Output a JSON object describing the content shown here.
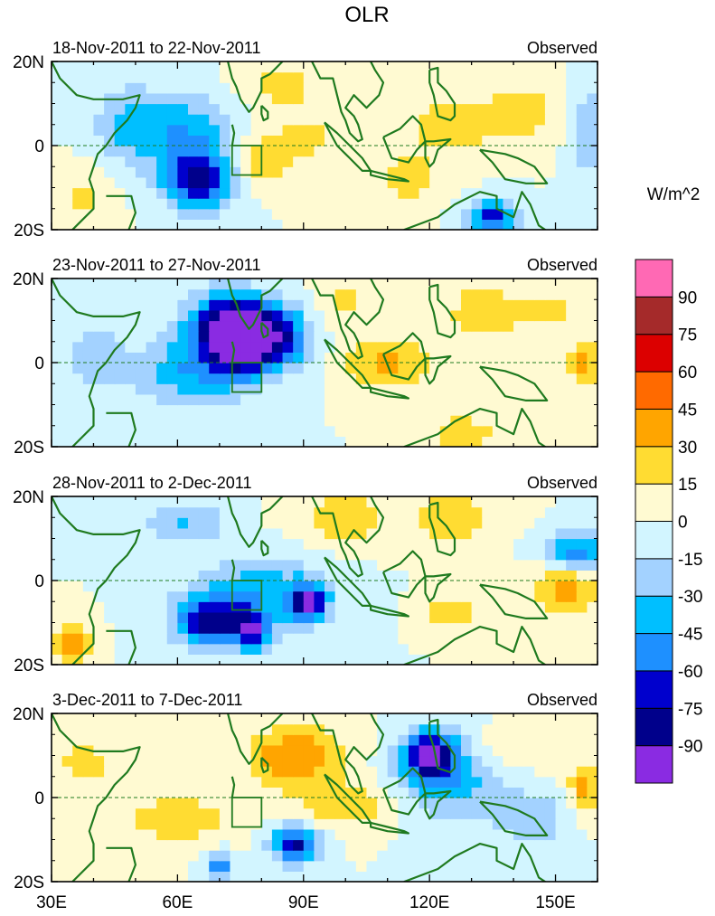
{
  "title": "OLR",
  "units": "W/m^2",
  "colors": {
    "frame": "#000000",
    "coast": "#1f7a1f",
    "box": "#1f7a1f",
    "equator": "#1f7a1f"
  },
  "chart_data": {
    "type": "heatmap",
    "variable": "OLR anomaly",
    "x_axis": {
      "min": 30,
      "max": 160,
      "ticks": [
        30,
        60,
        90,
        120,
        150
      ],
      "tick_labels": [
        "30E",
        "60E",
        "90E",
        "120E",
        "150E"
      ]
    },
    "y_axis": {
      "min": -20,
      "max": 20,
      "ticks": [
        20,
        0,
        -20
      ],
      "tick_labels": [
        "20N",
        "0",
        "20S"
      ]
    },
    "colorbar": {
      "levels": [
        -90,
        -75,
        -60,
        -45,
        -30,
        -15,
        0,
        15,
        30,
        45,
        60,
        75,
        90
      ],
      "level_labels": [
        "-90",
        "-75",
        "-60",
        "-45",
        "-30",
        "-15",
        "0",
        "15",
        "30",
        "45",
        "60",
        "75",
        "90"
      ],
      "colors": [
        "#8a2be2",
        "#00008b",
        "#0000cd",
        "#1e90ff",
        "#00bfff",
        "#a3d2ff",
        "#d2f5ff",
        "#fffad2",
        "#ffdc32",
        "#ffa500",
        "#ff6a00",
        "#dc0000",
        "#a52a2a",
        "#ff69b4"
      ]
    },
    "region_box": {
      "lon": [
        73,
        80
      ],
      "lat": [
        -7,
        0
      ]
    },
    "panels": [
      {
        "date_range": "18-Nov-2011 to 22-Nov-2011",
        "label": "Observed",
        "anomaly_centers": [
          {
            "lon": 65,
            "lat": -8,
            "value": -80,
            "sx": 6,
            "sy": 5
          },
          {
            "lon": 62,
            "lat": 4,
            "value": -40,
            "sx": 8,
            "sy": 6
          },
          {
            "lon": 48,
            "lat": 5,
            "value": -30,
            "sx": 6,
            "sy": 7
          },
          {
            "lon": 135,
            "lat": -17,
            "value": -70,
            "sx": 4,
            "sy": 3
          },
          {
            "lon": 158,
            "lat": 3,
            "value": -30,
            "sx": 3,
            "sy": 8
          },
          {
            "lon": 90,
            "lat": 2,
            "value": 20,
            "sx": 8,
            "sy": 4
          },
          {
            "lon": 85,
            "lat": 14,
            "value": 20,
            "sx": 8,
            "sy": 4
          },
          {
            "lon": 80,
            "lat": -5,
            "value": 25,
            "sx": 5,
            "sy": 4
          },
          {
            "lon": 125,
            "lat": 5,
            "value": 25,
            "sx": 8,
            "sy": 5
          },
          {
            "lon": 142,
            "lat": 8,
            "value": 25,
            "sx": 6,
            "sy": 5
          },
          {
            "lon": 115,
            "lat": -8,
            "value": 25,
            "sx": 6,
            "sy": 4
          },
          {
            "lon": 38,
            "lat": -12,
            "value": 20,
            "sx": 5,
            "sy": 5
          }
        ]
      },
      {
        "date_range": "23-Nov-2011 to 27-Nov-2011",
        "label": "Observed",
        "anomaly_centers": [
          {
            "lon": 75,
            "lat": 5,
            "value": -95,
            "sx": 6,
            "sy": 6
          },
          {
            "lon": 72,
            "lat": 10,
            "value": -60,
            "sx": 7,
            "sy": 5
          },
          {
            "lon": 62,
            "lat": -2,
            "value": -40,
            "sx": 9,
            "sy": 6
          },
          {
            "lon": 85,
            "lat": 6,
            "value": -55,
            "sx": 5,
            "sy": 5
          },
          {
            "lon": 40,
            "lat": 2,
            "value": -25,
            "sx": 5,
            "sy": 6
          },
          {
            "lon": 110,
            "lat": 0,
            "value": 35,
            "sx": 7,
            "sy": 4
          },
          {
            "lon": 132,
            "lat": 12,
            "value": 25,
            "sx": 6,
            "sy": 5
          },
          {
            "lon": 128,
            "lat": -17,
            "value": 30,
            "sx": 5,
            "sy": 3
          },
          {
            "lon": 157,
            "lat": 0,
            "value": 35,
            "sx": 3,
            "sy": 4
          },
          {
            "lon": 100,
            "lat": 15,
            "value": 20,
            "sx": 5,
            "sy": 4
          },
          {
            "lon": 148,
            "lat": 12,
            "value": 20,
            "sx": 6,
            "sy": 4
          }
        ]
      },
      {
        "date_range": "28-Nov-2011 to 2-Dec-2011",
        "label": "Observed",
        "anomaly_centers": [
          {
            "lon": 68,
            "lat": -10,
            "value": -75,
            "sx": 6,
            "sy": 4
          },
          {
            "lon": 91,
            "lat": -5,
            "value": -75,
            "sx": 3,
            "sy": 3
          },
          {
            "lon": 78,
            "lat": -12,
            "value": -65,
            "sx": 3,
            "sy": 3
          },
          {
            "lon": 80,
            "lat": -3,
            "value": -40,
            "sx": 12,
            "sy": 6
          },
          {
            "lon": 155,
            "lat": 7,
            "value": -55,
            "sx": 5,
            "sy": 3
          },
          {
            "lon": 62,
            "lat": 14,
            "value": -30,
            "sx": 7,
            "sy": 4
          },
          {
            "lon": 100,
            "lat": 15,
            "value": 25,
            "sx": 8,
            "sy": 5
          },
          {
            "lon": 125,
            "lat": 15,
            "value": 25,
            "sx": 7,
            "sy": 5
          },
          {
            "lon": 153,
            "lat": -2,
            "value": 35,
            "sx": 6,
            "sy": 4
          },
          {
            "lon": 35,
            "lat": -15,
            "value": 45,
            "sx": 3,
            "sy": 4
          },
          {
            "lon": 125,
            "lat": -7,
            "value": 25,
            "sx": 5,
            "sy": 3
          }
        ]
      },
      {
        "date_range": "3-Dec-2011 to 7-Dec-2011",
        "label": "Observed",
        "anomaly_centers": [
          {
            "lon": 120,
            "lat": 10,
            "value": -85,
            "sx": 4,
            "sy": 4
          },
          {
            "lon": 125,
            "lat": 5,
            "value": -40,
            "sx": 9,
            "sy": 7
          },
          {
            "lon": 88,
            "lat": -11,
            "value": -80,
            "sx": 4,
            "sy": 3
          },
          {
            "lon": 70,
            "lat": -16,
            "value": -70,
            "sx": 2,
            "sy": 2
          },
          {
            "lon": 145,
            "lat": -5,
            "value": -25,
            "sx": 7,
            "sy": 5
          },
          {
            "lon": 88,
            "lat": 10,
            "value": 45,
            "sx": 8,
            "sy": 5
          },
          {
            "lon": 60,
            "lat": -5,
            "value": 30,
            "sx": 8,
            "sy": 4
          },
          {
            "lon": 100,
            "lat": -2,
            "value": 25,
            "sx": 9,
            "sy": 4
          },
          {
            "lon": 157,
            "lat": 2,
            "value": 35,
            "sx": 3,
            "sy": 5
          },
          {
            "lon": 38,
            "lat": 8,
            "value": 20,
            "sx": 6,
            "sy": 5
          },
          {
            "lon": 140,
            "lat": 12,
            "value": 20,
            "sx": 7,
            "sy": 4
          }
        ]
      }
    ]
  }
}
